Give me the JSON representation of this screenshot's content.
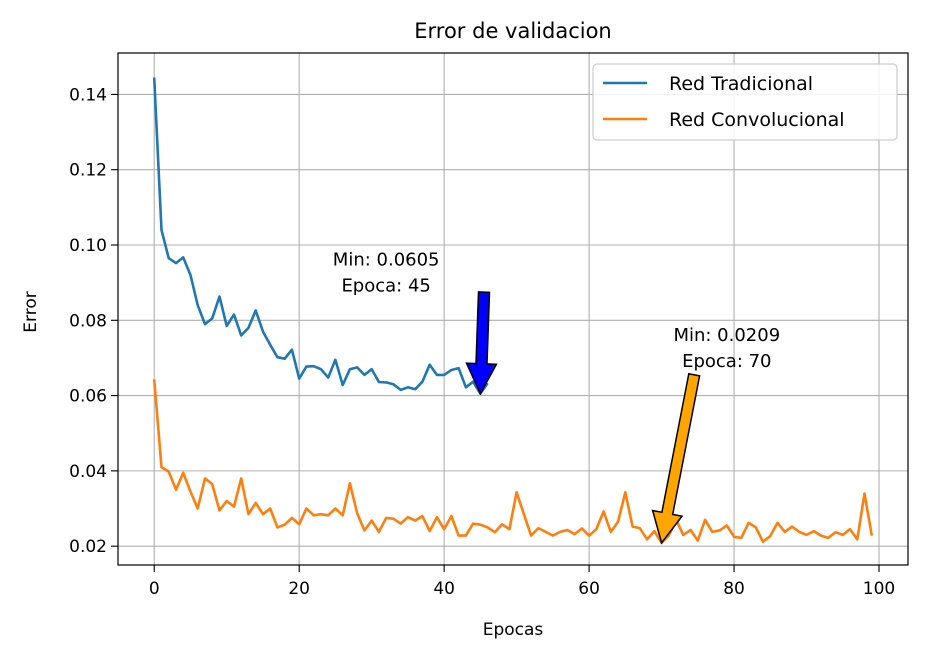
{
  "chart_data": {
    "type": "line",
    "title": "Error de validacion",
    "xlabel": "Epocas",
    "ylabel": "Error",
    "xlim": [
      -5,
      104
    ],
    "ylim": [
      0.015,
      0.151
    ],
    "xticks": [
      0,
      20,
      40,
      60,
      80,
      100
    ],
    "yticks": [
      0.02,
      0.04,
      0.06,
      0.08,
      0.1,
      0.12,
      0.14
    ],
    "ytick_labels": [
      "0.02",
      "0.04",
      "0.06",
      "0.08",
      "0.10",
      "0.12",
      "0.14"
    ],
    "grid": true,
    "legend_position": "top-right",
    "series": [
      {
        "name": "Red Tradicional",
        "color": "#1f77b4",
        "x": [
          0,
          1,
          2,
          3,
          4,
          5,
          6,
          7,
          8,
          9,
          10,
          11,
          12,
          13,
          14,
          15,
          16,
          17,
          18,
          19,
          20,
          21,
          22,
          23,
          24,
          25,
          26,
          27,
          28,
          29,
          30,
          31,
          32,
          33,
          34,
          35,
          36,
          37,
          38,
          39,
          40,
          41,
          42,
          43,
          44,
          45,
          46
        ],
        "values": [
          0.1445,
          0.104,
          0.0965,
          0.0952,
          0.0967,
          0.092,
          0.084,
          0.079,
          0.0805,
          0.0863,
          0.0785,
          0.0815,
          0.076,
          0.078,
          0.0826,
          0.077,
          0.0735,
          0.0702,
          0.0698,
          0.0722,
          0.0645,
          0.0677,
          0.0678,
          0.067,
          0.0648,
          0.0695,
          0.0628,
          0.067,
          0.0675,
          0.0655,
          0.067,
          0.0636,
          0.0635,
          0.063,
          0.0615,
          0.0622,
          0.0617,
          0.0637,
          0.0682,
          0.0655,
          0.0655,
          0.0668,
          0.0673,
          0.0622,
          0.0637,
          0.0605,
          0.0633
        ]
      },
      {
        "name": "Red Convolucional",
        "color": "#ff7f0e",
        "x": [
          0,
          1,
          2,
          3,
          4,
          5,
          6,
          7,
          8,
          9,
          10,
          11,
          12,
          13,
          14,
          15,
          16,
          17,
          18,
          19,
          20,
          21,
          22,
          23,
          24,
          25,
          26,
          27,
          28,
          29,
          30,
          31,
          32,
          33,
          34,
          35,
          36,
          37,
          38,
          39,
          40,
          41,
          42,
          43,
          44,
          45,
          46,
          47,
          48,
          49,
          50,
          51,
          52,
          53,
          54,
          55,
          56,
          57,
          58,
          59,
          60,
          61,
          62,
          63,
          64,
          65,
          66,
          67,
          68,
          69,
          70,
          71,
          72,
          73,
          74,
          75,
          76,
          77,
          78,
          79,
          80,
          81,
          82,
          83,
          84,
          85,
          86,
          87,
          88,
          89,
          90,
          91,
          92,
          93,
          94,
          95,
          96,
          97,
          98,
          99
        ],
        "values": [
          0.0643,
          0.041,
          0.0398,
          0.035,
          0.0395,
          0.0345,
          0.03,
          0.038,
          0.0365,
          0.0295,
          0.032,
          0.0305,
          0.038,
          0.0285,
          0.0315,
          0.0285,
          0.03,
          0.025,
          0.0257,
          0.0275,
          0.0258,
          0.03,
          0.0282,
          0.0285,
          0.0282,
          0.03,
          0.0282,
          0.0367,
          0.0287,
          0.0242,
          0.0268,
          0.0238,
          0.0275,
          0.0273,
          0.026,
          0.0277,
          0.0268,
          0.028,
          0.024,
          0.0277,
          0.0245,
          0.028,
          0.0228,
          0.0228,
          0.026,
          0.0257,
          0.025,
          0.0237,
          0.0258,
          0.0245,
          0.0343,
          0.0285,
          0.0228,
          0.0248,
          0.0238,
          0.0228,
          0.0238,
          0.0243,
          0.0232,
          0.0247,
          0.0228,
          0.0245,
          0.0292,
          0.0238,
          0.0265,
          0.0343,
          0.0252,
          0.0248,
          0.0218,
          0.024,
          0.0209,
          0.0228,
          0.027,
          0.023,
          0.0243,
          0.0215,
          0.027,
          0.0238,
          0.0242,
          0.0255,
          0.0225,
          0.0222,
          0.0262,
          0.025,
          0.0212,
          0.0227,
          0.0262,
          0.0238,
          0.0252,
          0.0238,
          0.023,
          0.024,
          0.0228,
          0.0222,
          0.0237,
          0.023,
          0.0245,
          0.0218,
          0.034,
          0.0228
        ]
      }
    ],
    "annotations": [
      {
        "lines": [
          "Min: 0.0605",
          "Epoca: 45"
        ],
        "point": [
          45,
          0.0605
        ],
        "text_at": [
          32,
          0.0945
        ],
        "tail": [
          45.5,
          0.0875
        ],
        "color": "#0000ff"
      },
      {
        "lines": [
          "Min: 0.0209",
          "Epoca: 70"
        ],
        "point": [
          70,
          0.0209
        ],
        "text_at": [
          79,
          0.0745
        ],
        "tail": [
          74.5,
          0.0655
        ],
        "color": "#ffa500"
      }
    ]
  }
}
